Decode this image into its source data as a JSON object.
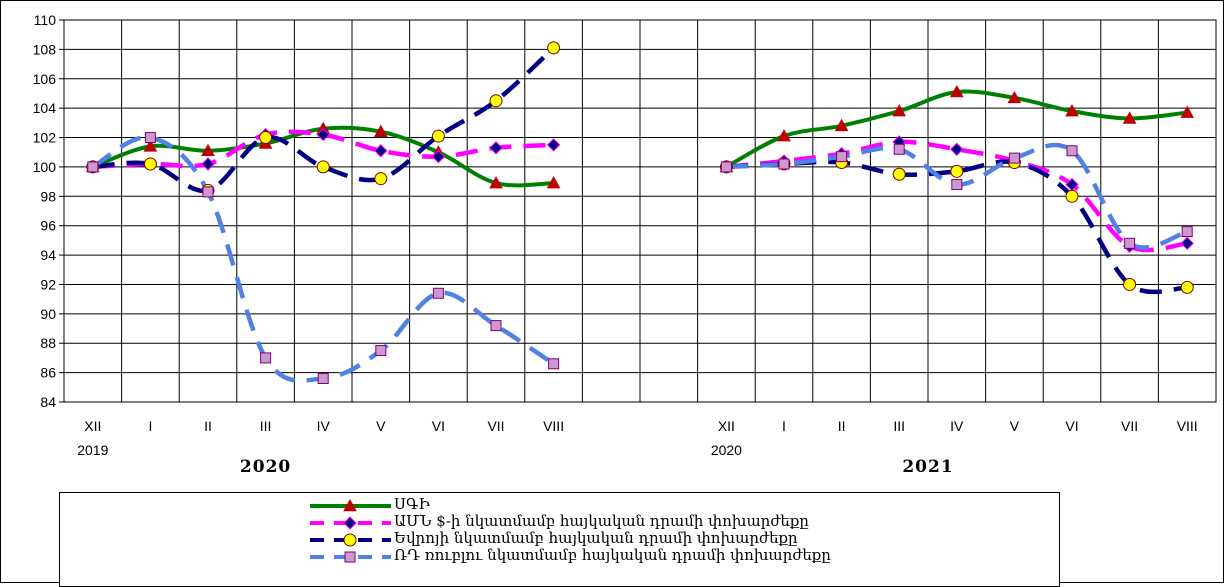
{
  "chart_data": {
    "type": "line",
    "title": "",
    "xlabel": "",
    "ylabel": "",
    "ylim": [
      84,
      110
    ],
    "yticks": [
      84,
      86,
      88,
      90,
      92,
      94,
      96,
      98,
      100,
      102,
      104,
      106,
      108,
      110
    ],
    "grid": true,
    "legend_position": "bottom",
    "categories": [
      "XII",
      "I",
      "II",
      "III",
      "IV",
      "V",
      "VI",
      "VII",
      "VIII",
      "",
      "",
      "XII",
      "I",
      "II",
      "III",
      "IV",
      "V",
      "VI",
      "VII",
      "VIII"
    ],
    "sub_labels": [
      {
        "index": 0,
        "text": "2019"
      },
      {
        "index": 11,
        "text": "2020"
      }
    ],
    "period_labels": [
      {
        "index": 3,
        "text": "2020"
      },
      {
        "index": 14.5,
        "text": "2021"
      }
    ],
    "series": [
      {
        "name": "ՍԳԻ",
        "color": "#008000",
        "marker": "triangle",
        "marker_color": "#c00000",
        "dash": "solid",
        "values": [
          100.0,
          101.4,
          101.1,
          101.6,
          102.6,
          102.4,
          101.0,
          98.9,
          98.9,
          null,
          null,
          100.0,
          102.1,
          102.8,
          103.8,
          105.1,
          104.7,
          103.8,
          103.3,
          103.7
        ]
      },
      {
        "name": "ԱՄՆ $-ի նկատմամբ հայկական դրամի փոխարժեքը",
        "color": "#ff00ff",
        "marker": "diamond",
        "marker_color": "#000080",
        "dash": "dashed",
        "values": [
          100.0,
          100.2,
          100.2,
          102.2,
          102.2,
          101.1,
          100.7,
          101.3,
          101.5,
          null,
          null,
          100.0,
          100.4,
          100.9,
          101.7,
          101.2,
          100.4,
          98.8,
          94.6,
          94.8
        ]
      },
      {
        "name": "Եվրոյի նկատմամբ հայկական դրամի փոխարժեքը",
        "color": "#000080",
        "marker": "circle",
        "marker_color": "#ffff00",
        "dash": "dashed",
        "values": [
          100.0,
          100.2,
          98.4,
          102.0,
          100.0,
          99.2,
          102.1,
          104.5,
          108.1,
          null,
          null,
          100.0,
          100.2,
          100.3,
          99.5,
          99.7,
          100.3,
          98.0,
          92.0,
          91.8
        ]
      },
      {
        "name": "ՌԴ ռուբլու նկատմամբ հայկական դրամի փոխարժեքը",
        "color": "#4f81e6",
        "marker": "square",
        "marker_color": "#cc99cc",
        "dash": "dashed",
        "values": [
          100.0,
          102.0,
          98.3,
          87.0,
          85.6,
          87.5,
          91.4,
          89.2,
          86.6,
          null,
          null,
          100.0,
          100.2,
          100.7,
          101.2,
          98.8,
          100.6,
          101.1,
          94.8,
          95.6
        ]
      }
    ]
  }
}
